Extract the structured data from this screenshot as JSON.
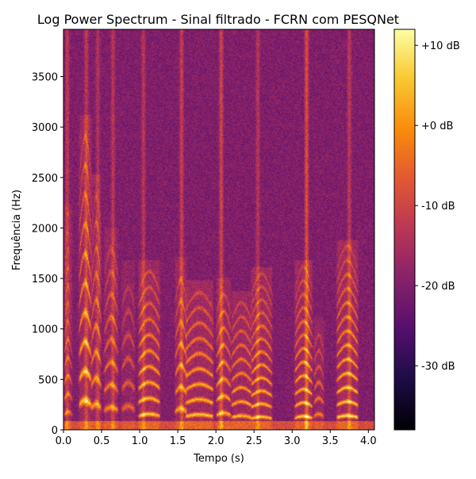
{
  "chart_data": {
    "type": "heatmap",
    "title": "Log Power Spectrum - Sinal filtrado - FCRN com PESQNet",
    "xlabel": "Tempo (s)",
    "ylabel": "Frequência (Hz)",
    "xlim": [
      0.0,
      4.08
    ],
    "ylim": [
      0,
      3968
    ],
    "x_ticks": [
      "0.0",
      "0.5",
      "1.0",
      "1.5",
      "2.0",
      "2.5",
      "3.0",
      "3.5",
      "4.0"
    ],
    "y_ticks": [
      "0",
      "500",
      "1000",
      "1500",
      "2000",
      "2500",
      "3000",
      "3500"
    ],
    "colormap": "inferno",
    "colorbar": {
      "range_db": [
        -38,
        12
      ],
      "ticks": [
        "+10 dB",
        "+0 dB",
        "-10 dB",
        "-20 dB",
        "-30 dB"
      ]
    },
    "segments": [
      {
        "start": 0.02,
        "end": 0.1,
        "f0": 160,
        "harmonics": 12,
        "bright": 0.55
      },
      {
        "start": 0.22,
        "end": 0.35,
        "f0": 260,
        "harmonics": 10,
        "bright": 0.9
      },
      {
        "start": 0.38,
        "end": 0.48,
        "f0": 230,
        "harmonics": 9,
        "bright": 0.75
      },
      {
        "start": 0.55,
        "end": 0.7,
        "f0": 200,
        "harmonics": 8,
        "bright": 0.7
      },
      {
        "start": 0.78,
        "end": 0.92,
        "f0": 210,
        "harmonics": 6,
        "bright": 0.55
      },
      {
        "start": 1.0,
        "end": 1.25,
        "f0": 140,
        "harmonics": 10,
        "bright": 0.95
      },
      {
        "start": 1.48,
        "end": 1.6,
        "f0": 190,
        "harmonics": 7,
        "bright": 0.8
      },
      {
        "start": 1.62,
        "end": 1.95,
        "f0": 135,
        "harmonics": 9,
        "bright": 0.95
      },
      {
        "start": 2.02,
        "end": 2.18,
        "f0": 150,
        "harmonics": 8,
        "bright": 0.85
      },
      {
        "start": 2.22,
        "end": 2.45,
        "f0": 125,
        "harmonics": 9,
        "bright": 0.9
      },
      {
        "start": 2.48,
        "end": 2.72,
        "f0": 115,
        "harmonics": 12,
        "bright": 0.95
      },
      {
        "start": 3.05,
        "end": 3.25,
        "f0": 120,
        "harmonics": 12,
        "bright": 0.95
      },
      {
        "start": 3.3,
        "end": 3.4,
        "f0": 140,
        "harmonics": 6,
        "bright": 0.7
      },
      {
        "start": 3.6,
        "end": 3.85,
        "f0": 125,
        "harmonics": 13,
        "bright": 1.0
      }
    ],
    "noise_bursts": [
      {
        "t": 0.05,
        "bright": 0.6
      },
      {
        "t": 0.3,
        "bright": 0.6
      },
      {
        "t": 0.45,
        "bright": 0.5
      },
      {
        "t": 0.65,
        "bright": 0.55
      },
      {
        "t": 1.05,
        "bright": 0.55
      },
      {
        "t": 1.55,
        "bright": 0.7
      },
      {
        "t": 2.07,
        "bright": 0.8
      },
      {
        "t": 2.55,
        "bright": 0.55
      },
      {
        "t": 3.19,
        "bright": 0.9
      },
      {
        "t": 3.75,
        "bright": 0.6
      }
    ]
  }
}
